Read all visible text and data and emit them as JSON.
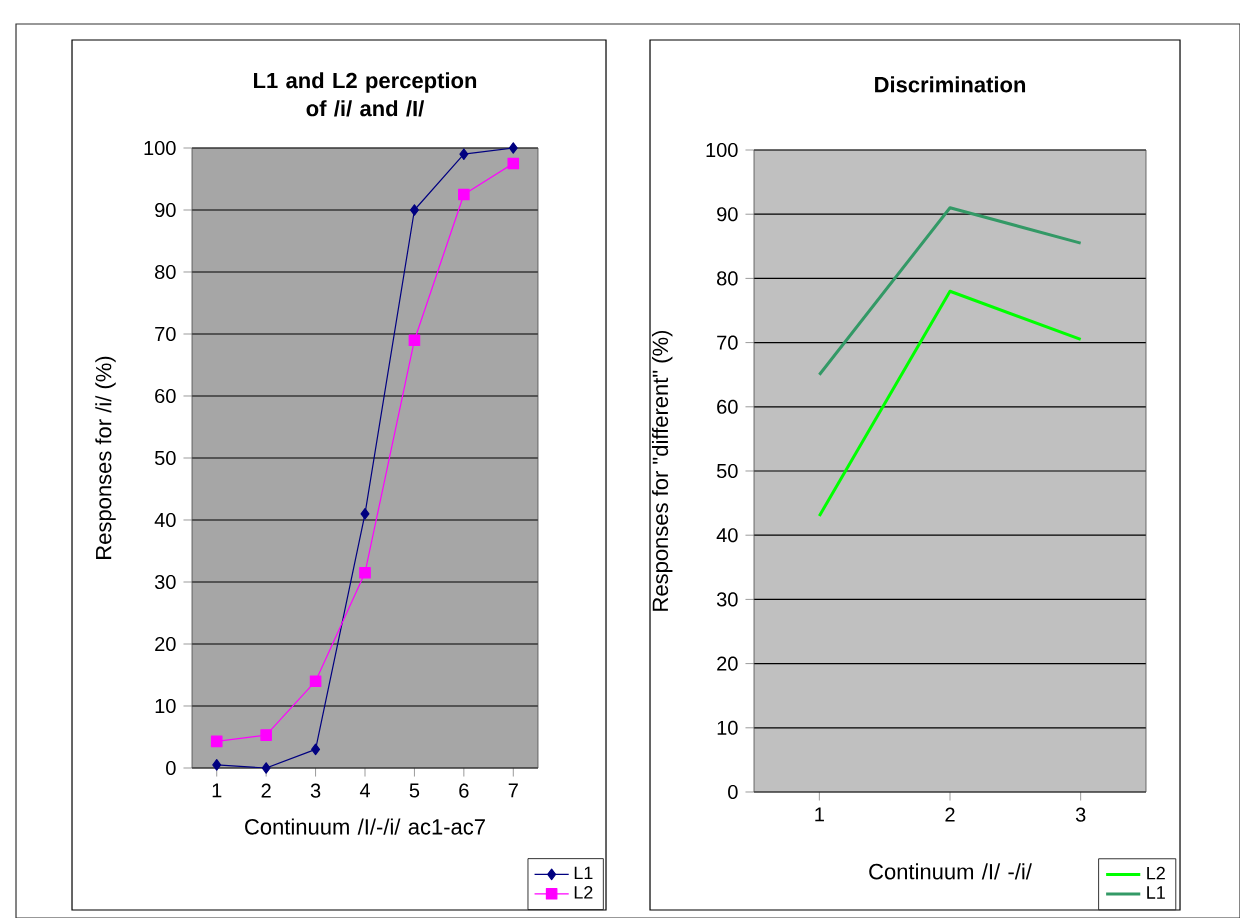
{
  "chart_data": [
    {
      "type": "line",
      "title": "L1 and L2 perception of /i/ and /I/",
      "xlabel": "Continuum /I/-/i/ ac1-ac7",
      "ylabel": "Responses for /i/ (%)",
      "categories": [
        "1",
        "2",
        "3",
        "4",
        "5",
        "6",
        "7"
      ],
      "series": [
        {
          "name": "L1",
          "color": "#000080",
          "marker": "diamond",
          "values": [
            0.5,
            0,
            3,
            41,
            90,
            99,
            100
          ]
        },
        {
          "name": "L2",
          "color": "#ff00ff",
          "marker": "square",
          "values": [
            4.3,
            5.3,
            14,
            31.5,
            69,
            92.5,
            97.5
          ]
        }
      ],
      "ylim": [
        0,
        100
      ],
      "yticks": [
        0,
        10,
        20,
        30,
        40,
        50,
        60,
        70,
        80,
        90,
        100
      ],
      "grid": "y",
      "legend": "bottom right"
    },
    {
      "type": "line",
      "title": "Discrimination",
      "xlabel": "Continuum /I/ -/i/",
      "ylabel": "Responses for \"different\" (%)",
      "categories": [
        "1",
        "2",
        "3"
      ],
      "series": [
        {
          "name": "L2",
          "color": "#00ff00",
          "values": [
            43,
            78,
            70.5
          ]
        },
        {
          "name": "L1",
          "color": "#339966",
          "values": [
            65,
            91,
            85.5
          ]
        }
      ],
      "ylim": [
        0,
        100
      ],
      "yticks": [
        0,
        10,
        20,
        30,
        40,
        50,
        60,
        70,
        80,
        90,
        100
      ],
      "grid": "y",
      "legend": "bottom right",
      "marker": "none"
    }
  ]
}
